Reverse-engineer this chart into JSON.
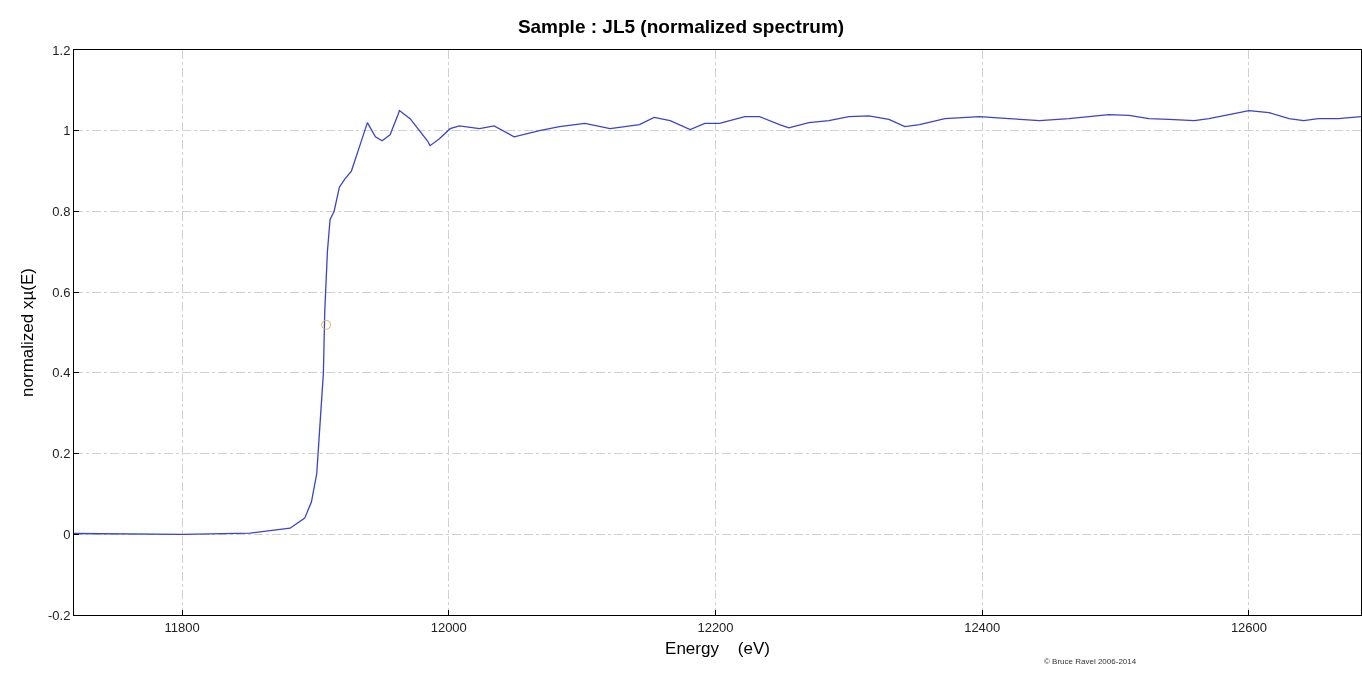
{
  "chart_data": {
    "type": "line",
    "title": "Sample : JL5 (normalized spectrum)",
    "xlabel": "Energy    (eV)",
    "ylabel": "normalized xµ(E)",
    "annotations": [
      "© Bruce Ravel 2006-2014"
    ],
    "xlim": [
      11719,
      12684
    ],
    "xticks": [
      11800,
      12000,
      12200,
      12400,
      12600
    ],
    "ylim": [
      -0.2,
      1.2
    ],
    "yticks": [
      -0.2,
      0,
      0.2,
      0.4,
      0.6,
      0.8,
      1,
      1.2
    ],
    "grid": true,
    "marker": "none",
    "line_style": "solid",
    "series": [
      {
        "color": "#3d44c4",
        "x": [
          11719,
          11800,
          11851,
          11881,
          11892,
          11897,
          11901,
          11903,
          11906,
          11907,
          11909,
          11911,
          11914,
          11918,
          11922,
          11927,
          11933,
          11939,
          11945,
          11950,
          11956,
          11962,
          11963,
          11971,
          11978,
          11984,
          11986,
          11993,
          12001,
          12008,
          12023,
          12034,
          12049,
          12068,
          12083,
          12102,
          12121,
          12143,
          12154,
          12166,
          12181,
          12192,
          12203,
          12222,
          12233,
          12248,
          12255,
          12270,
          12285,
          12300,
          12315,
          12330,
          12342,
          12353,
          12372,
          12398,
          12420,
          12443,
          12465,
          12480,
          12495,
          12510,
          12525,
          12540,
          12559,
          12570,
          12585,
          12600,
          12615,
          12630,
          12641,
          12652,
          12667,
          12684
        ],
        "values": [
          0.002,
          0.0,
          0.003,
          0.015,
          0.04,
          0.08,
          0.15,
          0.25,
          0.4,
          0.55,
          0.7,
          0.78,
          0.8,
          0.86,
          0.88,
          0.9,
          0.96,
          1.02,
          0.985,
          0.975,
          0.99,
          1.04,
          1.05,
          1.03,
          1.0,
          0.975,
          0.963,
          0.98,
          1.005,
          1.012,
          1.005,
          1.012,
          0.985,
          1.0,
          1.01,
          1.018,
          1.005,
          1.015,
          1.033,
          1.025,
          1.003,
          1.018,
          1.018,
          1.035,
          1.035,
          1.015,
          1.007,
          1.02,
          1.025,
          1.035,
          1.037,
          1.028,
          1.01,
          1.015,
          1.03,
          1.035,
          1.03,
          1.025,
          1.03,
          1.035,
          1.04,
          1.038,
          1.03,
          1.028,
          1.025,
          1.03,
          1.04,
          1.05,
          1.045,
          1.03,
          1.025,
          1.03,
          1.03,
          1.035
        ]
      },
      {
        "type": "scatter",
        "color": "#e8b45a",
        "marker": "circle",
        "x": [
          11908
        ],
        "values": [
          0.519
        ]
      }
    ]
  }
}
